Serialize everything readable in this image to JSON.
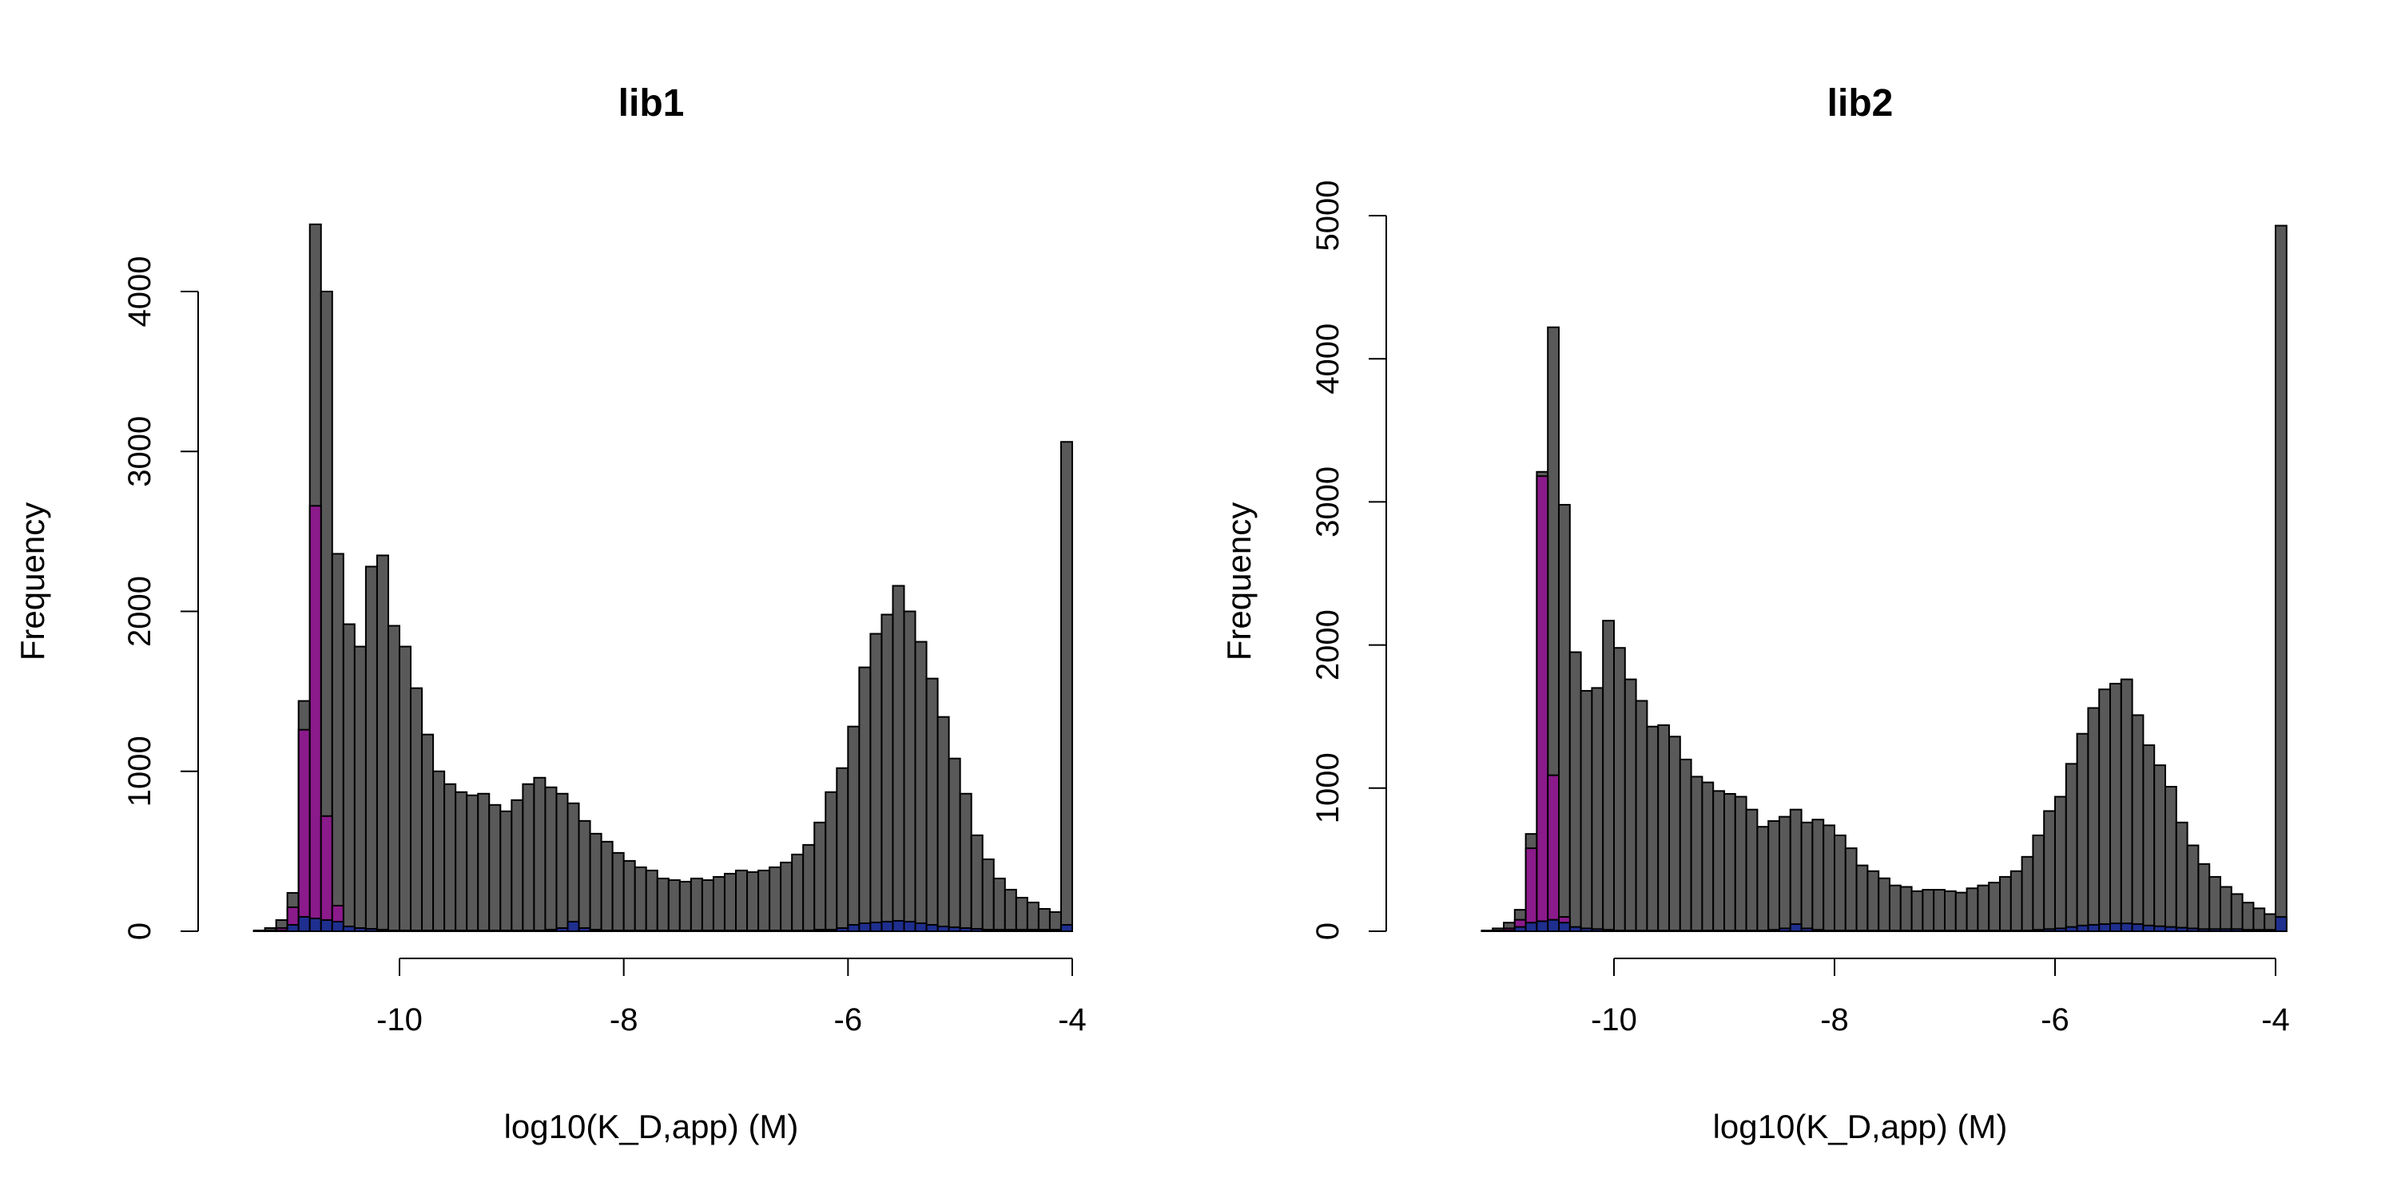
{
  "chart_data": [
    {
      "type": "bar",
      "title": "lib1",
      "xlabel": "log10(K_D,app) (M)",
      "ylabel": "Frequency",
      "x_ticks": [
        -10,
        -8,
        -6,
        -4
      ],
      "y_ticks": [
        0,
        1000,
        2000,
        3000,
        4000
      ],
      "ylim": [
        0,
        4420
      ],
      "bin_width": 0.1,
      "bin_start": -11.4,
      "colors": {
        "all": "#595959",
        "purple": "#8b1a8b",
        "blue": "#1f2f8f"
      },
      "series": [
        {
          "values": [
            0,
            5,
            20,
            70,
            240,
            1440,
            4420,
            4000,
            2360,
            1920,
            1780,
            2280,
            2350,
            1910,
            1780,
            1520,
            1230,
            1000,
            920,
            870,
            850,
            860,
            790,
            750,
            820,
            920,
            960,
            900,
            860,
            800,
            690,
            610,
            560,
            490,
            440,
            400,
            380,
            330,
            320,
            310,
            330,
            320,
            340,
            360,
            380,
            370,
            380,
            400,
            430,
            480,
            540,
            680,
            870,
            1020,
            1280,
            1650,
            1860,
            1980,
            2160,
            2000,
            1810,
            1580,
            1340,
            1080,
            860,
            600,
            450,
            330,
            260,
            210,
            180,
            140,
            120,
            3060
          ]
        },
        {
          "values": [
            0,
            0,
            5,
            20,
            150,
            1260,
            2660,
            720,
            160,
            30,
            10,
            5,
            0,
            0,
            0,
            0,
            0,
            0,
            0,
            0,
            0,
            0,
            0,
            0,
            0,
            0,
            0,
            0,
            0,
            0,
            0,
            0,
            0,
            0,
            0,
            0,
            0,
            0,
            0,
            0,
            0,
            0,
            0,
            0,
            0,
            0,
            0,
            0,
            0,
            0,
            0,
            0,
            0,
            0,
            0,
            0,
            0,
            0,
            0,
            0,
            0,
            0,
            0,
            0,
            0,
            0,
            0,
            0,
            0,
            0,
            0,
            0,
            0,
            0
          ]
        },
        {
          "values": [
            0,
            0,
            0,
            5,
            40,
            90,
            80,
            70,
            60,
            30,
            20,
            15,
            10,
            5,
            5,
            5,
            5,
            5,
            5,
            5,
            5,
            5,
            5,
            5,
            5,
            5,
            5,
            10,
            20,
            60,
            20,
            10,
            5,
            5,
            5,
            5,
            5,
            5,
            5,
            5,
            5,
            5,
            5,
            5,
            5,
            5,
            5,
            5,
            5,
            5,
            5,
            10,
            10,
            20,
            40,
            50,
            55,
            60,
            65,
            60,
            50,
            40,
            30,
            25,
            20,
            15,
            10,
            10,
            10,
            10,
            10,
            10,
            10,
            40
          ]
        }
      ]
    },
    {
      "type": "bar",
      "title": "lib2",
      "xlabel": "log10(K_D,app) (M)",
      "ylabel": "Frequency",
      "x_ticks": [
        -10,
        -8,
        -6,
        -4
      ],
      "y_ticks": [
        0,
        1000,
        2000,
        3000,
        4000,
        5000
      ],
      "ylim": [
        0,
        5000
      ],
      "bin_width": 0.1,
      "bin_start": -11.3,
      "colors": {
        "all": "#595959",
        "purple": "#8b1a8b",
        "blue": "#1f2f8f"
      },
      "series": [
        {
          "values": [
            0,
            5,
            20,
            60,
            150,
            680,
            3210,
            4220,
            2980,
            1950,
            1680,
            1700,
            2170,
            1980,
            1760,
            1610,
            1430,
            1440,
            1360,
            1200,
            1080,
            1040,
            980,
            960,
            940,
            850,
            730,
            770,
            800,
            850,
            760,
            780,
            740,
            670,
            580,
            460,
            420,
            370,
            320,
            310,
            280,
            290,
            290,
            280,
            270,
            300,
            320,
            340,
            380,
            420,
            520,
            670,
            840,
            940,
            1170,
            1380,
            1560,
            1690,
            1730,
            1760,
            1510,
            1300,
            1160,
            1010,
            760,
            600,
            470,
            380,
            310,
            260,
            200,
            160,
            120,
            4930
          ]
        },
        {
          "values": [
            0,
            0,
            5,
            20,
            80,
            580,
            3180,
            1090,
            100,
            20,
            10,
            5,
            0,
            0,
            0,
            0,
            0,
            0,
            0,
            0,
            0,
            0,
            0,
            0,
            0,
            0,
            0,
            0,
            0,
            0,
            0,
            0,
            0,
            0,
            0,
            0,
            0,
            0,
            0,
            0,
            0,
            0,
            0,
            0,
            0,
            0,
            0,
            0,
            0,
            0,
            0,
            0,
            0,
            0,
            0,
            0,
            0,
            0,
            0,
            0,
            0,
            0,
            0,
            0,
            0,
            0,
            0,
            0,
            0,
            0,
            0,
            0,
            0,
            0
          ]
        },
        {
          "values": [
            0,
            0,
            0,
            5,
            30,
            60,
            70,
            80,
            60,
            30,
            20,
            15,
            10,
            5,
            5,
            5,
            5,
            5,
            5,
            5,
            5,
            5,
            5,
            5,
            5,
            5,
            5,
            10,
            20,
            50,
            20,
            10,
            5,
            5,
            5,
            5,
            5,
            5,
            5,
            5,
            5,
            5,
            5,
            5,
            5,
            5,
            5,
            5,
            5,
            5,
            5,
            10,
            15,
            20,
            30,
            40,
            45,
            50,
            55,
            55,
            50,
            40,
            35,
            30,
            25,
            20,
            15,
            15,
            15,
            15,
            10,
            10,
            10,
            100
          ]
        }
      ]
    }
  ]
}
